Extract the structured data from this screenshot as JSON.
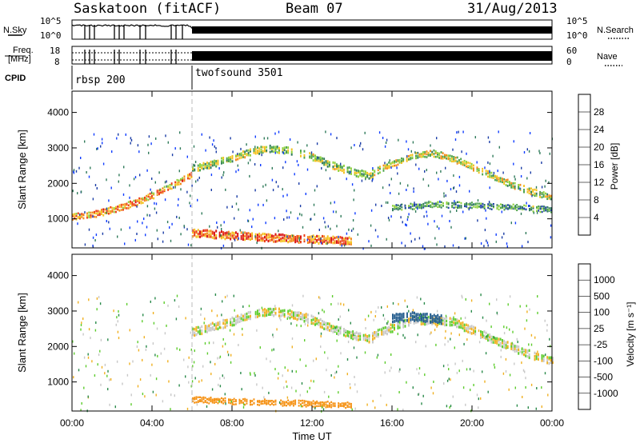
{
  "header": {
    "station": "Saskatoon (fitACF)",
    "beam": "Beam 07",
    "date": "31/Aug/2013"
  },
  "aux_panels": {
    "nsky": {
      "left_label": "N.Sky",
      "left_ticks": [
        "10^5",
        "10^0"
      ],
      "right_label": "N.Search",
      "right_ticks": [
        "10^5",
        "10^0"
      ]
    },
    "freq": {
      "left_label_line1": "Freq.",
      "left_label_line2": "[MHz]",
      "left_ticks": [
        "18",
        "8"
      ],
      "right_label": "Nave",
      "right_ticks": [
        "60",
        "0"
      ]
    },
    "cpid": {
      "label": "CPID",
      "modes": [
        {
          "name": "rbsp 200",
          "start_h": 0,
          "end_h": 6
        },
        {
          "name": "twofsound 3501",
          "start_h": 6,
          "end_h": 24
        }
      ]
    }
  },
  "chart_data": [
    {
      "type": "heatmap",
      "title": "",
      "xlabel": "",
      "ylabel": "Slant Range [km]",
      "xlim": [
        0,
        24
      ],
      "ylim": [
        180,
        4600
      ],
      "y_ticks": [
        "1000",
        "2000",
        "3000",
        "4000"
      ],
      "x_ticks": [
        "00:00",
        "04:00",
        "08:00",
        "12:00",
        "16:00",
        "20:00",
        "00:00"
      ],
      "colorbar": {
        "label": "Power [dB]",
        "ticks": [
          "4",
          "8",
          "12",
          "16",
          "20",
          "24",
          "28"
        ],
        "colors": [
          "#0f3cff",
          "#1a3ca6",
          "#2f7a5a",
          "#4ca24a",
          "#8fd13a",
          "#f3c11c",
          "#f28a17",
          "#ec3a12",
          "#d81010"
        ],
        "range": [
          0,
          30
        ]
      },
      "features": [
        {
          "name": "early-band",
          "t": [
            0,
            1,
            2,
            3,
            4,
            5,
            6
          ],
          "r": [
            1050,
            1120,
            1250,
            1420,
            1650,
            1950,
            2250
          ],
          "width_km": 180,
          "power_db": 22
        },
        {
          "name": "main-arc",
          "t": [
            6,
            7,
            8,
            9,
            10,
            11,
            12,
            13,
            14,
            15
          ],
          "r": [
            2400,
            2550,
            2700,
            2900,
            2980,
            2900,
            2750,
            2500,
            2320,
            2200
          ],
          "width_km": 200,
          "power_db": 14
        },
        {
          "name": "afternoon-arc",
          "t": [
            15,
            16,
            17,
            18,
            19,
            20,
            21,
            22,
            23,
            24
          ],
          "r": [
            2300,
            2550,
            2750,
            2850,
            2700,
            2450,
            2200,
            1950,
            1750,
            1600
          ],
          "width_km": 180,
          "power_db": 16
        },
        {
          "name": "lower-band",
          "t": [
            16,
            18,
            20,
            22,
            24
          ],
          "r": [
            1300,
            1400,
            1380,
            1320,
            1250
          ],
          "width_km": 160,
          "power_db": 10
        },
        {
          "name": "near-range-echoes",
          "t": [
            6,
            8,
            10,
            12,
            14
          ],
          "r": [
            600,
            520,
            460,
            420,
            360
          ],
          "width_km": 220,
          "power_db": 24
        }
      ]
    },
    {
      "type": "heatmap",
      "title": "",
      "xlabel": "Time UT",
      "ylabel": "Slant Range [km]",
      "xlim": [
        0,
        24
      ],
      "ylim": [
        180,
        4600
      ],
      "y_ticks": [
        "1000",
        "2000",
        "3000",
        "4000"
      ],
      "x_ticks": [
        "00:00",
        "04:00",
        "08:00",
        "12:00",
        "16:00",
        "20:00",
        "00:00"
      ],
      "colorbar": {
        "label": "Velocity [m s⁻¹]",
        "ticks": [
          "1000",
          "500",
          "100",
          "25",
          "-25",
          "-100",
          "-500",
          "-1000"
        ],
        "colors": [
          "#2030c8",
          "#205a8c",
          "#2a8a4a",
          "#5ccc2c",
          "#c8c8c8",
          "#f0b020",
          "#f59010",
          "#ee5010",
          "#e01010"
        ]
      },
      "features": [
        {
          "name": "ground-scatter-arc",
          "t": [
            6,
            7,
            8,
            9,
            10,
            11,
            12,
            13,
            14,
            15
          ],
          "r": [
            2400,
            2550,
            2700,
            2900,
            2980,
            2900,
            2750,
            2500,
            2320,
            2200
          ],
          "width_km": 240,
          "velocity": 0
        },
        {
          "name": "ground-scatter-afternoon",
          "t": [
            15,
            17,
            19,
            21,
            23,
            24
          ],
          "r": [
            2300,
            2750,
            2700,
            2200,
            1750,
            1600
          ],
          "width_km": 240,
          "velocity": 0
        },
        {
          "name": "positive-patch",
          "t": [
            16,
            17,
            18,
            18.5
          ],
          "r": [
            2800,
            2850,
            2780,
            2750
          ],
          "width_km": 250,
          "velocity": 600
        },
        {
          "name": "near-range-negative",
          "t": [
            6,
            8,
            10,
            12,
            14
          ],
          "r": [
            500,
            450,
            420,
            380,
            340
          ],
          "width_km": 160,
          "velocity": -150
        }
      ]
    }
  ]
}
